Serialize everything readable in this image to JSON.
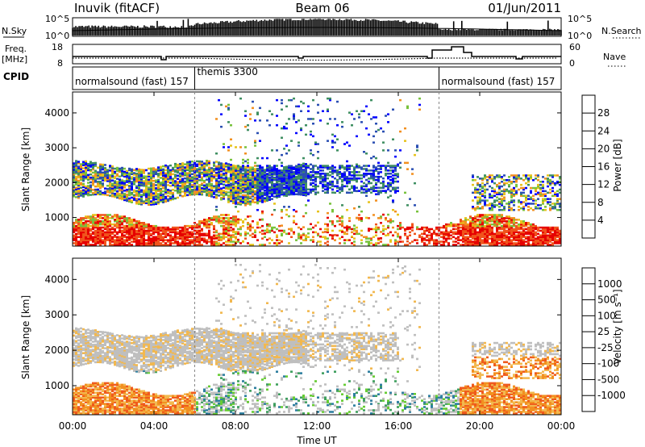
{
  "header": {
    "station": "Inuvik (fitACF)",
    "beam": "Beam 06",
    "date": "01/Jun/2011"
  },
  "noise_panel": {
    "left_label": "N.Sky",
    "right_label": "N.Search",
    "left_ticks": [
      "10^5",
      "10^0"
    ],
    "right_ticks": [
      "10^5",
      "10^0"
    ]
  },
  "freq_panel": {
    "left_label": "Freq.",
    "left_unit": "[MHz]",
    "right_label": "Nave",
    "left_ticks": [
      "18",
      "8"
    ],
    "right_ticks": [
      "60",
      "0"
    ]
  },
  "cpid_panel": {
    "label": "CPID",
    "segments": [
      {
        "text": "normalsound (fast) 157",
        "start_hour": 0,
        "end_hour": 6
      },
      {
        "text": "themis 3300",
        "start_hour": 6,
        "end_hour": 18
      },
      {
        "text": "normalsound (fast) 157",
        "start_hour": 18,
        "end_hour": 24
      }
    ]
  },
  "chart_data": [
    {
      "type": "heatmap",
      "name": "power",
      "ylabel": "Slant Range [km]",
      "ylim": [
        180,
        4600
      ],
      "yticks": [
        "1000",
        "2000",
        "3000",
        "4000"
      ],
      "colorbar_label": "Power [dB]",
      "colorbar_ticks": [
        "4",
        "8",
        "12",
        "16",
        "20",
        "24",
        "28"
      ],
      "colors": [
        "#0000ff",
        "#2b4fb3",
        "#3f8f62",
        "#78c23c",
        "#e7c31c",
        "#f29020",
        "#f0541c",
        "#e60000"
      ]
    },
    {
      "type": "heatmap",
      "name": "velocity",
      "ylabel": "Slant Range [km]",
      "ylim": [
        180,
        4600
      ],
      "yticks": [
        "1000",
        "2000",
        "3000",
        "4000"
      ],
      "colorbar_label": "Velocity [m s⁻¹]",
      "colorbar_ticks": [
        "1000",
        "500",
        "100",
        "25",
        "-25",
        "-100",
        "-500",
        "-1000"
      ],
      "colors": [
        "#1f3fbf",
        "#2f7fa0",
        "#3f9f5f",
        "#66cc33",
        "#bfbfbf",
        "#f2b84f",
        "#f29020",
        "#ef5a1c",
        "#e60000"
      ]
    }
  ],
  "x_axis": {
    "label": "Time UT",
    "ticks": [
      "00:00",
      "04:00",
      "08:00",
      "12:00",
      "16:00",
      "20:00",
      "00:00"
    ],
    "range_hours": [
      0,
      24
    ]
  }
}
